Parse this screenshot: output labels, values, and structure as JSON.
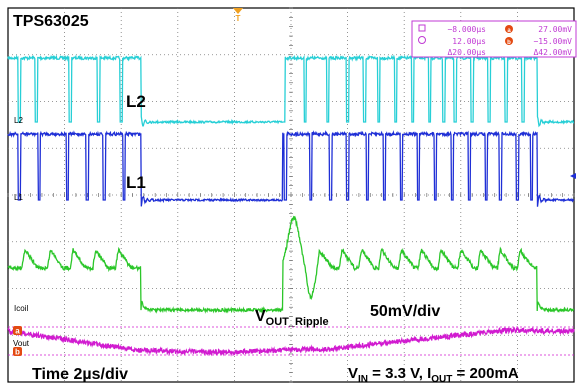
{
  "device": "TPS63025",
  "time_div": "Time 2µs/div",
  "channels": {
    "L2": {
      "marker": "L2",
      "label": "L2",
      "color": "#27cfd6"
    },
    "L1": {
      "marker": "L1",
      "label": "L1",
      "color": "#1f2fd6"
    },
    "coil": {
      "marker": "Icoil",
      "color": "#2bc629"
    },
    "vout": {
      "marker": "Vout",
      "color": "#d11bd0"
    }
  },
  "vout_label": {
    "main": "V",
    "sub": "OUT_Ripple",
    "scale": "50mV/div"
  },
  "conditions": {
    "v": "V",
    "v_sub": "IN",
    "v_rest": " = 3.3 V, I",
    "i_sub": "OUT",
    "i_rest": " = 200mA"
  },
  "cursor_markers": {
    "a": "a",
    "b": "b"
  },
  "trigger_marker": "T",
  "cursor_readout": {
    "t1": "−8.000µs",
    "t2": "12.00µs",
    "dt": "Δ20.00µs",
    "v1": "27.00mV",
    "v2": "−15.00mV",
    "dv": "Δ42.00mV"
  },
  "chart_data": {
    "type": "line",
    "x_unit": "µs",
    "xlim": [
      -10,
      10
    ],
    "series": [
      {
        "name": "L2",
        "high_intervals": [
          [
            -10.0,
            -5.3
          ],
          [
            -0.3,
            8.7
          ]
        ],
        "dip_times": [
          -9.6,
          -9.0,
          -7.8,
          -6.8,
          -6.0,
          -0.25,
          0.5,
          1.3,
          2.0,
          2.6,
          3.1,
          3.7,
          4.3,
          4.9,
          5.4,
          5.8,
          6.4,
          7.0,
          7.6,
          8.2
        ]
      },
      {
        "name": "L1",
        "high_intervals": [
          [
            -10.0,
            -5.3
          ],
          [
            -0.3,
            8.7
          ]
        ],
        "dip_times": [
          -9.6,
          -8.9,
          -7.9,
          -7.2,
          -6.6,
          -5.9,
          -0.2,
          0.7,
          1.4,
          2.0,
          2.7,
          3.3,
          3.9,
          4.5,
          5.1,
          5.7,
          6.3,
          6.9,
          7.4,
          8.0,
          8.5
        ]
      },
      {
        "name": "Icoil"
      },
      {
        "name": "Vout",
        "scale": "50mV/div"
      }
    ]
  }
}
